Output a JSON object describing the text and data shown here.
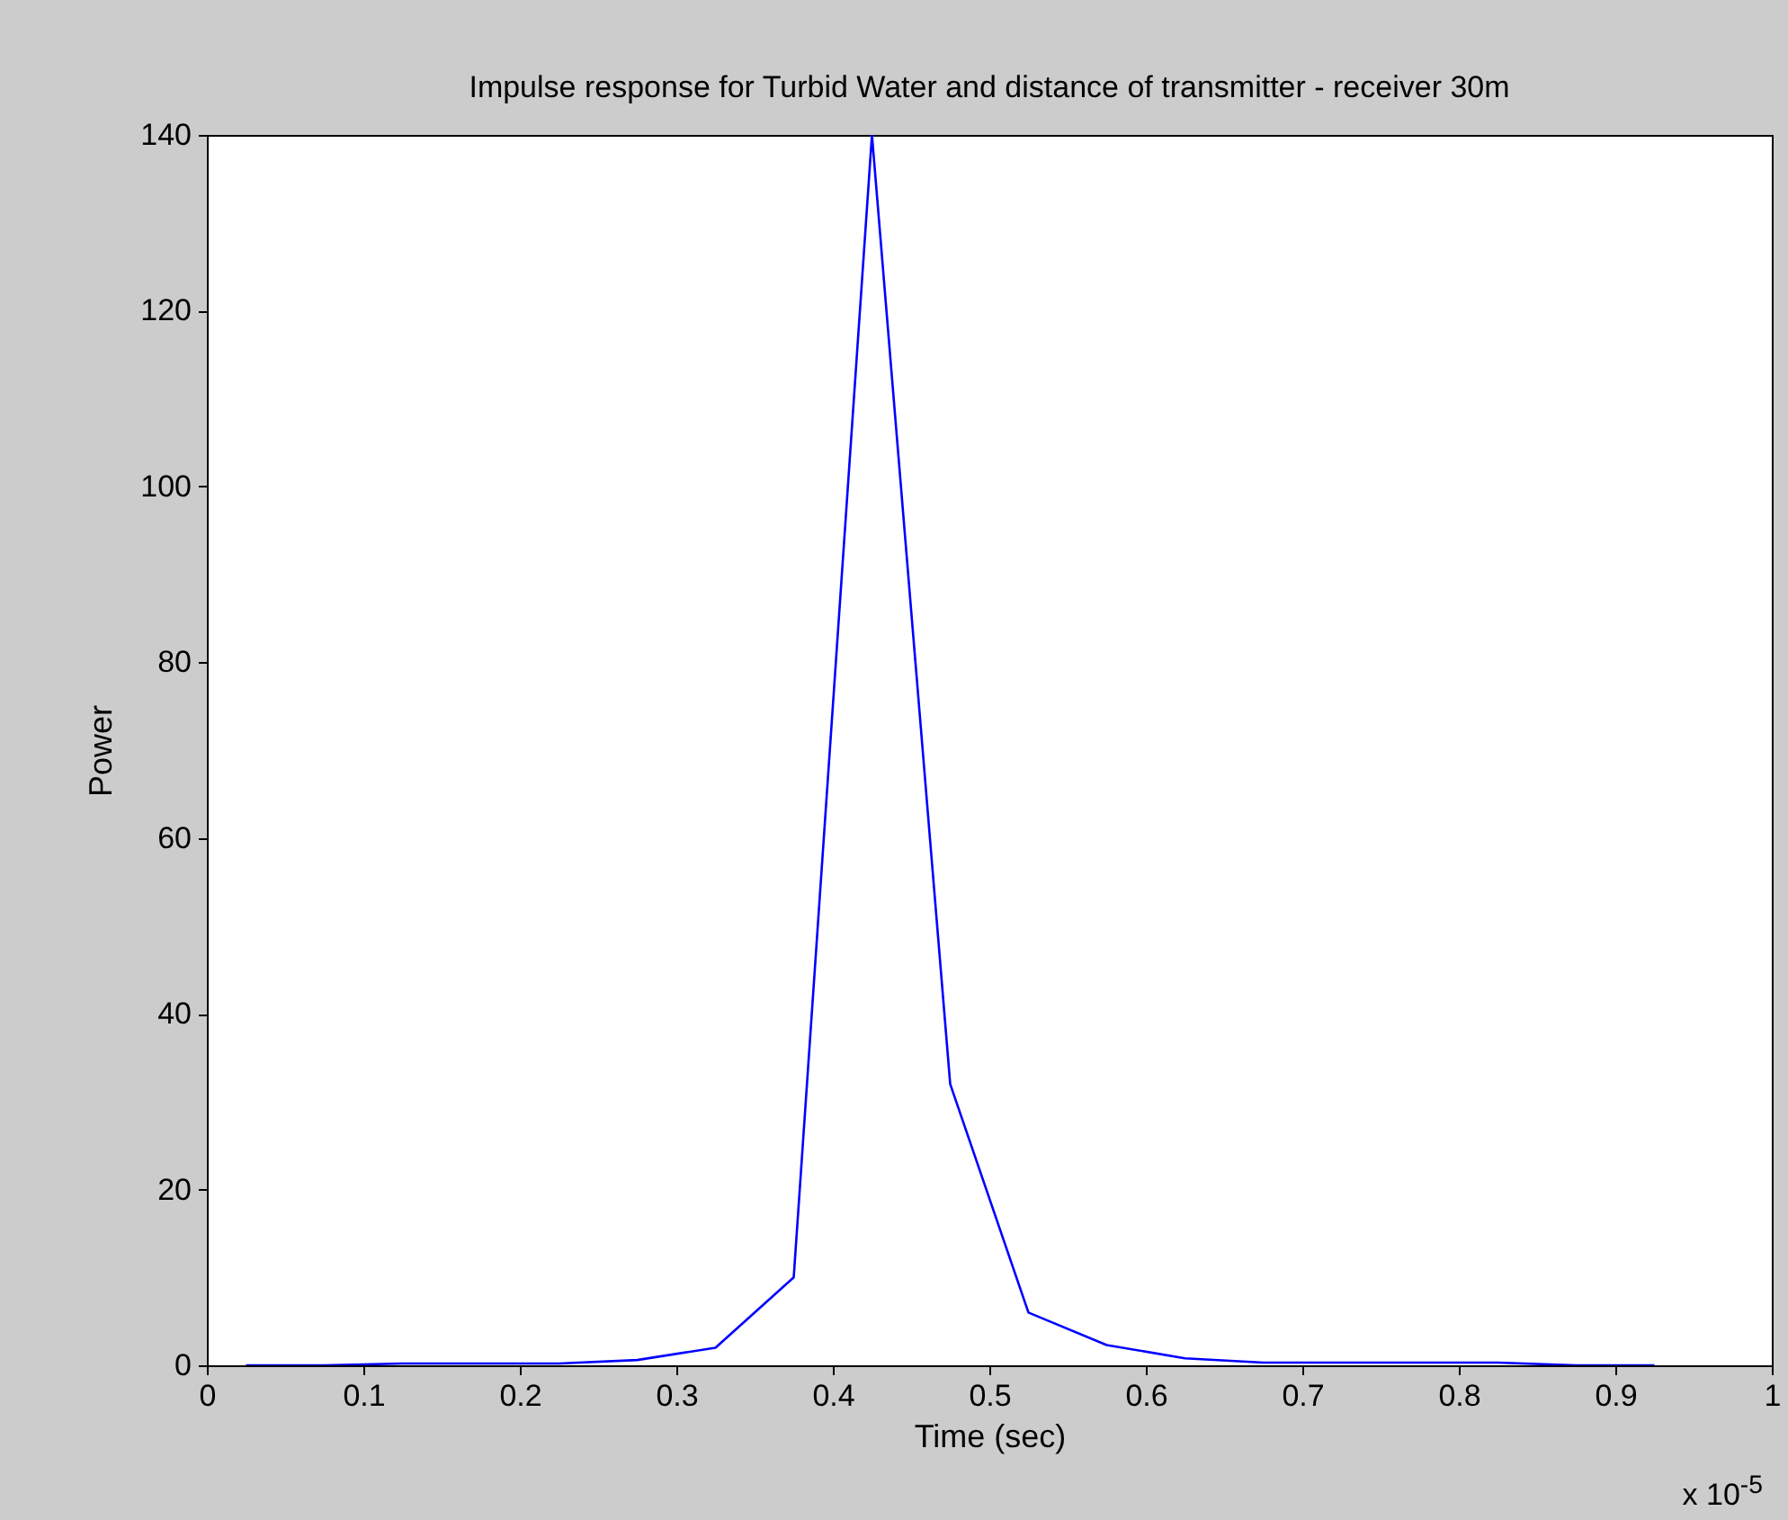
{
  "chart_data": {
    "type": "line",
    "title": "Impulse response for Turbid Water and distance of transmitter - receiver 30m",
    "xlabel": "Time (sec)",
    "ylabel": "Power",
    "annotations": [
      "x 10$^{-5}$"
    ],
    "x": [
      0.025,
      0.075,
      0.125,
      0.175,
      0.225,
      0.275,
      0.325,
      0.375,
      0.425,
      0.475,
      0.525,
      0.575,
      0.625,
      0.675,
      0.725,
      0.775,
      0.825,
      0.875,
      0.925
    ],
    "series": [
      {
        "color": "#0000ff",
        "values": [
          0,
          0,
          0.2,
          0.2,
          0.2,
          0.6,
          2,
          10,
          140,
          32,
          6,
          2.3,
          0.8,
          0.3,
          0.3,
          0.3,
          0.3,
          0,
          0
        ]
      }
    ],
    "xlim": [
      0,
      1
    ],
    "xticks": [
      0,
      0.1,
      0.2,
      0.3,
      0.4,
      0.5,
      0.6,
      0.7,
      0.8,
      0.9,
      1
    ],
    "ylim": [
      0,
      140
    ],
    "yticks": [
      0,
      20,
      40,
      60,
      80,
      100,
      120,
      140
    ],
    "grid": false,
    "marker": "none",
    "line_style": "solid"
  }
}
